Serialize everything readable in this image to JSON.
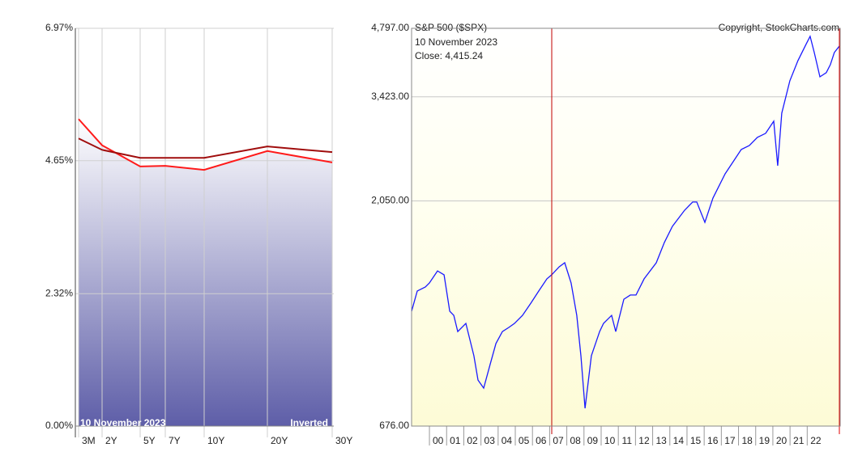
{
  "chart_data": [
    {
      "type": "line",
      "categories": [
        "3M",
        "2Y",
        "5Y",
        "7Y",
        "10Y",
        "20Y",
        "30Y"
      ],
      "series": [
        {
          "color": "#ff1a1a",
          "values": [
            5.38,
            4.92,
            4.55,
            4.56,
            4.49,
            4.82,
            4.62
          ]
        },
        {
          "color": "#a00d0d",
          "values": [
            5.04,
            4.84,
            4.7,
            4.7,
            4.7,
            4.9,
            4.8
          ]
        }
      ],
      "ylim": [
        0,
        6.97
      ],
      "yticks": [
        {
          "value": 0,
          "label": "0.00%"
        },
        {
          "value": 2.32,
          "label": "2.32%"
        },
        {
          "value": 4.65,
          "label": "4.65%"
        },
        {
          "value": 6.97,
          "label": "6.97%"
        }
      ],
      "grid": true,
      "annotations": [
        "10  November 2023",
        "Inverted"
      ]
    },
    {
      "type": "line",
      "title": "S&P 500 ($SPX)",
      "annotations": [
        "10  November 2023",
        "Close: 4,415.24",
        "Copyright, StockCharts.com"
      ],
      "log_scale": true,
      "grid": true,
      "x": [
        1998.96,
        1999.29,
        1999.76,
        2000,
        2000.47,
        2000.85,
        2001.18,
        2001.42,
        2001.65,
        2002.12,
        2002.59,
        2002.83,
        2003.16,
        2003.54,
        2003.87,
        2004.25,
        2004.62,
        2004.95,
        2005.42,
        2005.9,
        2006.37,
        2006.84,
        2007.12,
        2007.55,
        2007.88,
        2008.25,
        2008.58,
        2008.82,
        2009.06,
        2009.43,
        2009.91,
        2010.14,
        2010.61,
        2010.85,
        2011.32,
        2011.7,
        2012.03,
        2012.5,
        2013.21,
        2013.68,
        2014.15,
        2014.86,
        2015.33,
        2015.57,
        2016.04,
        2016.51,
        2017.22,
        2017.69,
        2018.16,
        2018.63,
        2019.1,
        2019.58,
        2020.05,
        2020.28,
        2020.52,
        2020.99,
        2021.46,
        2021.93,
        2022.17,
        2022.41,
        2022.74,
        2023.11,
        2023.35,
        2023.58,
        2023.92
      ],
      "series": [
        {
          "color": "#1a1aff",
          "values": [
            1190,
            1315,
            1341,
            1368,
            1452,
            1424,
            1190,
            1166,
            1077,
            1121,
            956,
            848,
            815,
            918,
            1015,
            1077,
            1099,
            1121,
            1166,
            1238,
            1315,
            1396,
            1424,
            1481,
            1511,
            1368,
            1166,
            956,
            738,
            956,
            1077,
            1121,
            1166,
            1077,
            1263,
            1289,
            1289,
            1396,
            1511,
            1670,
            1808,
            1958,
            2038,
            2038,
            1844,
            2079,
            2342,
            2487,
            2640,
            2693,
            2803,
            2859,
            3035,
            2438,
            3158,
            3704,
            4092,
            4431,
            4611,
            4258,
            3778,
            3855,
            4011,
            4258,
            4415.24
          ]
        }
      ],
      "xlim": [
        1998.96,
        2023.92
      ],
      "xticks": [
        {
          "value": 2000,
          "label": "00"
        },
        {
          "value": 2001,
          "label": "01"
        },
        {
          "value": 2002,
          "label": "02"
        },
        {
          "value": 2003,
          "label": "03"
        },
        {
          "value": 2004,
          "label": "04"
        },
        {
          "value": 2005,
          "label": "05"
        },
        {
          "value": 2006,
          "label": "06"
        },
        {
          "value": 2007,
          "label": "07"
        },
        {
          "value": 2008,
          "label": "08"
        },
        {
          "value": 2009,
          "label": "09"
        },
        {
          "value": 2010,
          "label": "10"
        },
        {
          "value": 2011,
          "label": "11"
        },
        {
          "value": 2012,
          "label": "12"
        },
        {
          "value": 2013,
          "label": "13"
        },
        {
          "value": 2014,
          "label": "14"
        },
        {
          "value": 2015,
          "label": "15"
        },
        {
          "value": 2016,
          "label": "16"
        },
        {
          "value": 2017,
          "label": "17"
        },
        {
          "value": 2018,
          "label": "18"
        },
        {
          "value": 2019,
          "label": "19"
        },
        {
          "value": 2020,
          "label": "20"
        },
        {
          "value": 2021,
          "label": "21"
        },
        {
          "value": 2022,
          "label": "22"
        }
      ],
      "ylim": [
        676,
        4797
      ],
      "yticks": [
        {
          "value": 676,
          "label": "676.00"
        },
        {
          "value": 2050,
          "label": "2,050.00"
        },
        {
          "value": 3423,
          "label": "3,423.00"
        },
        {
          "value": 4797,
          "label": "4,797.00"
        }
      ]
    }
  ]
}
